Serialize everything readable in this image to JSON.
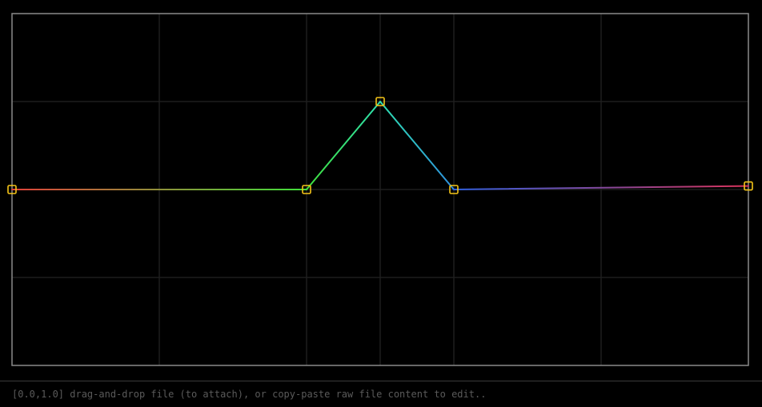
{
  "editor": {
    "domain": {
      "x": [
        0,
        1
      ],
      "y": [
        -1,
        1
      ]
    },
    "grid": {
      "x_divisions": 5,
      "y_divisions": 4,
      "minor_x": [
        0.5
      ]
    },
    "points": [
      {
        "x": 0.0,
        "y": 0.0
      },
      {
        "x": 0.4,
        "y": 0.0
      },
      {
        "x": 0.5,
        "y": 0.5
      },
      {
        "x": 0.6,
        "y": 0.0
      },
      {
        "x": 1.0,
        "y": 0.02
      }
    ],
    "segment_colors": [
      [
        "#e0413a",
        "#3fe03a"
      ],
      [
        "#3fe03a",
        "#2ee0b0"
      ],
      [
        "#2ee0b0",
        "#2e8fe0"
      ],
      [
        "#2e5fe0",
        "#d8335a"
      ]
    ],
    "colors": {
      "background": "#000000",
      "frame": "#8a8a8a",
      "grid": "#1e1e1e",
      "handle_stroke": "#f5c518",
      "status_text": "#5a5a5a"
    },
    "icons": {
      "point_handle": "square-handle-icon"
    }
  },
  "status": {
    "hint": "[0.0,1.0] drag-and-drop file (to attach), or copy-paste raw file content to edit.."
  }
}
